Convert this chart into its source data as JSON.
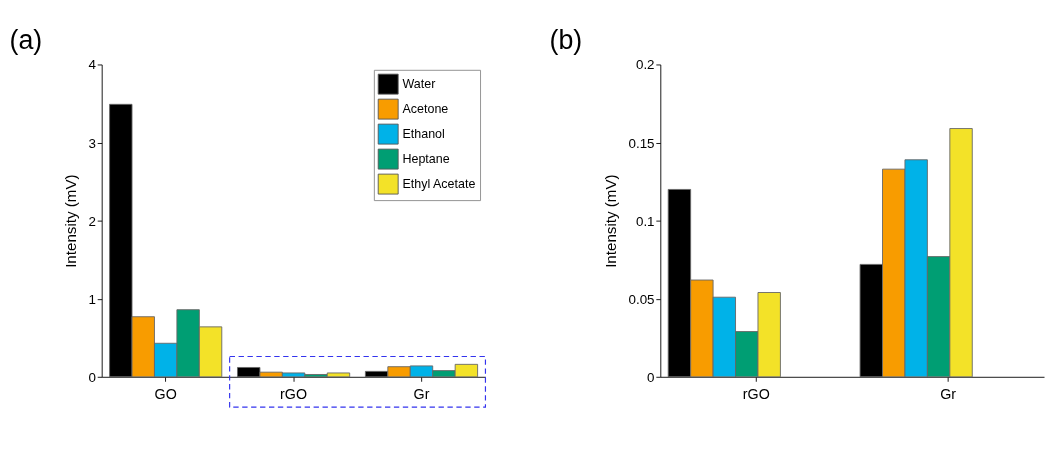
{
  "chart_data": [
    {
      "type": "bar",
      "title": "(a)",
      "ylabel": "Intensity (mV)",
      "categories": [
        "GO",
        "rGO",
        "Gr"
      ],
      "series": [
        {
          "name": "Water",
          "color": "#000000",
          "values": [
            3.49,
            0.12,
            0.07
          ]
        },
        {
          "name": "Acetone",
          "color": "#f89c00",
          "values": [
            0.77,
            0.06,
            0.13
          ]
        },
        {
          "name": "Ethanol",
          "color": "#00b2e8",
          "values": [
            0.43,
            0.05,
            0.14
          ]
        },
        {
          "name": "Heptane",
          "color": "#009e73",
          "values": [
            0.86,
            0.03,
            0.08
          ]
        },
        {
          "name": "Ethyl Acetate",
          "color": "#f3e228",
          "values": [
            0.64,
            0.05,
            0.16
          ]
        }
      ],
      "ylim": [
        0,
        4
      ],
      "yticks": [
        0,
        1,
        2,
        3,
        4
      ],
      "grid": false,
      "legend": "top right"
    },
    {
      "type": "bar",
      "title": "(b)",
      "ylabel": "Intensity (mV)",
      "categories": [
        "rGO",
        "Gr"
      ],
      "series": [
        {
          "name": "Water",
          "color": "#000000",
          "values": [
            0.12,
            0.072
          ]
        },
        {
          "name": "Acetone",
          "color": "#f89c00",
          "values": [
            0.062,
            0.133
          ]
        },
        {
          "name": "Ethanol",
          "color": "#00b2e8",
          "values": [
            0.051,
            0.139
          ]
        },
        {
          "name": "Heptane",
          "color": "#009e73",
          "values": [
            0.029,
            0.077
          ]
        },
        {
          "name": "Ethyl Acetate",
          "color": "#f3e228",
          "values": [
            0.054,
            0.159
          ]
        }
      ],
      "ylim": [
        0,
        0.2
      ],
      "yticks": [
        0,
        0.05,
        0.1,
        0.15,
        0.2
      ],
      "grid": false,
      "legend": false
    }
  ]
}
